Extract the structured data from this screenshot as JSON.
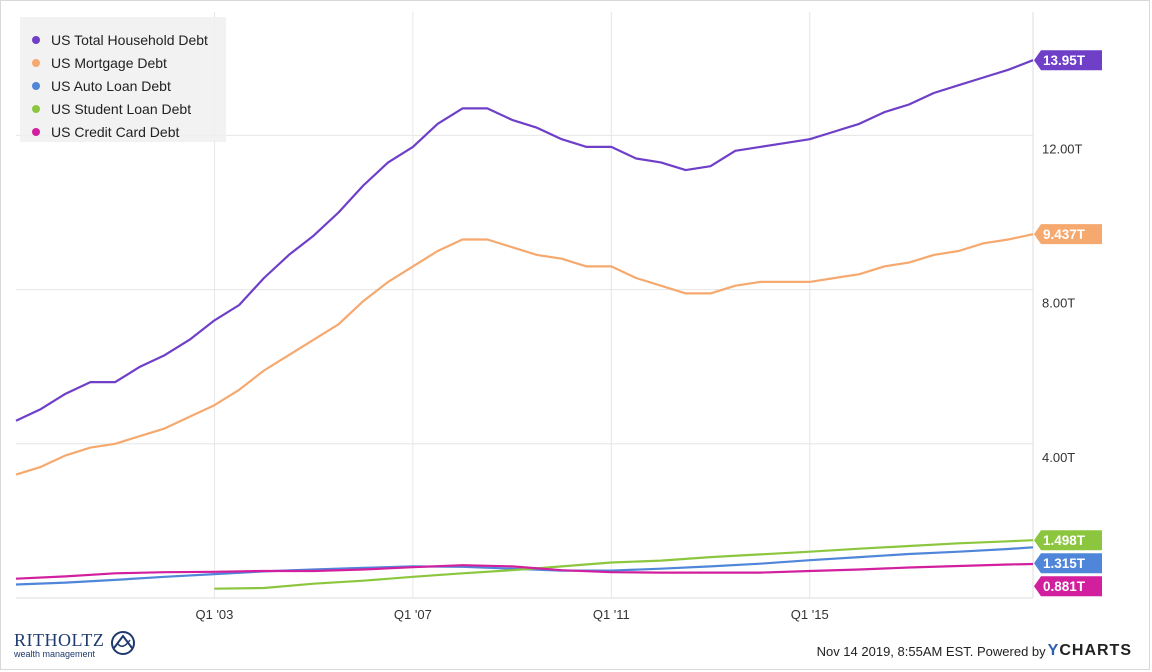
{
  "chart_data": {
    "type": "line",
    "x_ticks": [
      "Q1 '03",
      "Q1 '07",
      "Q1 '11",
      "Q1 '15"
    ],
    "x_tick_years": [
      2003,
      2007,
      2011,
      2015
    ],
    "x_range": [
      1999.0,
      2019.5
    ],
    "ylim": [
      0,
      15.2
    ],
    "y_ticks": [
      "4.00T",
      "8.00T",
      "12.00T"
    ],
    "y_tick_values": [
      4,
      8,
      12
    ],
    "grid": true,
    "legend_position": "top-left",
    "series": [
      {
        "name": "US Total Household Debt",
        "color": "#6f3fc8",
        "last_label": "13.95T",
        "x": [
          1999.0,
          1999.5,
          2000.0,
          2000.5,
          2001.0,
          2001.5,
          2002.0,
          2002.5,
          2003.0,
          2003.5,
          2004.0,
          2004.5,
          2005.0,
          2005.5,
          2006.0,
          2006.5,
          2007.0,
          2007.5,
          2008.0,
          2008.5,
          2009.0,
          2009.5,
          2010.0,
          2010.5,
          2011.0,
          2011.5,
          2012.0,
          2012.5,
          2013.0,
          2013.5,
          2014.0,
          2014.5,
          2015.0,
          2015.5,
          2016.0,
          2016.5,
          2017.0,
          2017.5,
          2018.0,
          2018.5,
          2019.0,
          2019.5
        ],
        "values": [
          4.6,
          4.9,
          5.3,
          5.6,
          5.6,
          6.0,
          6.3,
          6.7,
          7.2,
          7.6,
          8.3,
          8.9,
          9.4,
          10.0,
          10.7,
          11.3,
          11.7,
          12.3,
          12.7,
          12.7,
          12.4,
          12.2,
          11.9,
          11.7,
          11.7,
          11.4,
          11.3,
          11.1,
          11.2,
          11.6,
          11.7,
          11.8,
          11.9,
          12.1,
          12.3,
          12.6,
          12.8,
          13.1,
          13.3,
          13.5,
          13.7,
          13.95
        ]
      },
      {
        "name": "US Mortgage Debt",
        "color": "#f6a96e",
        "last_label": "9.437T",
        "x": [
          1999.0,
          1999.5,
          2000.0,
          2000.5,
          2001.0,
          2001.5,
          2002.0,
          2002.5,
          2003.0,
          2003.5,
          2004.0,
          2004.5,
          2005.0,
          2005.5,
          2006.0,
          2006.5,
          2007.0,
          2007.5,
          2008.0,
          2008.5,
          2009.0,
          2009.5,
          2010.0,
          2010.5,
          2011.0,
          2011.5,
          2012.0,
          2012.5,
          2013.0,
          2013.5,
          2014.0,
          2014.5,
          2015.0,
          2015.5,
          2016.0,
          2016.5,
          2017.0,
          2017.5,
          2018.0,
          2018.5,
          2019.0,
          2019.5
        ],
        "values": [
          3.2,
          3.4,
          3.7,
          3.9,
          4.0,
          4.2,
          4.4,
          4.7,
          5.0,
          5.4,
          5.9,
          6.3,
          6.7,
          7.1,
          7.7,
          8.2,
          8.6,
          9.0,
          9.3,
          9.3,
          9.1,
          8.9,
          8.8,
          8.6,
          8.6,
          8.3,
          8.1,
          7.9,
          7.9,
          8.1,
          8.2,
          8.2,
          8.2,
          8.3,
          8.4,
          8.6,
          8.7,
          8.9,
          9.0,
          9.2,
          9.3,
          9.437
        ]
      },
      {
        "name": "US Auto Loan Debt",
        "color": "#4f86d9",
        "last_label": "1.315T",
        "x": [
          1999.0,
          2000.0,
          2001.0,
          2002.0,
          2003.0,
          2004.0,
          2005.0,
          2006.0,
          2007.0,
          2008.0,
          2009.0,
          2010.0,
          2011.0,
          2012.0,
          2013.0,
          2014.0,
          2015.0,
          2016.0,
          2017.0,
          2018.0,
          2019.0,
          2019.5
        ],
        "values": [
          0.35,
          0.4,
          0.47,
          0.55,
          0.62,
          0.69,
          0.74,
          0.78,
          0.82,
          0.81,
          0.76,
          0.71,
          0.71,
          0.76,
          0.82,
          0.89,
          0.98,
          1.06,
          1.14,
          1.2,
          1.27,
          1.315
        ]
      },
      {
        "name": "US Student Loan Debt",
        "color": "#8cc63f",
        "last_label": "1.498T",
        "x": [
          2003.0,
          2004.0,
          2005.0,
          2006.0,
          2007.0,
          2008.0,
          2009.0,
          2010.0,
          2011.0,
          2012.0,
          2013.0,
          2014.0,
          2015.0,
          2016.0,
          2017.0,
          2018.0,
          2019.0,
          2019.5
        ],
        "values": [
          0.24,
          0.26,
          0.37,
          0.45,
          0.55,
          0.64,
          0.72,
          0.82,
          0.92,
          0.97,
          1.06,
          1.13,
          1.2,
          1.28,
          1.35,
          1.42,
          1.47,
          1.498
        ]
      },
      {
        "name": "US Credit Card Debt",
        "color": "#d21f9e",
        "last_label": "0.881T",
        "x": [
          1999.0,
          2000.0,
          2001.0,
          2002.0,
          2003.0,
          2004.0,
          2005.0,
          2006.0,
          2007.0,
          2008.0,
          2009.0,
          2010.0,
          2011.0,
          2012.0,
          2013.0,
          2014.0,
          2015.0,
          2016.0,
          2017.0,
          2018.0,
          2019.0,
          2019.5
        ],
        "values": [
          0.5,
          0.56,
          0.64,
          0.67,
          0.68,
          0.7,
          0.7,
          0.74,
          0.8,
          0.85,
          0.82,
          0.72,
          0.67,
          0.66,
          0.66,
          0.66,
          0.7,
          0.74,
          0.79,
          0.83,
          0.87,
          0.881
        ]
      }
    ]
  },
  "legend": {
    "items": [
      {
        "label": "US Total Household Debt",
        "color": "#6f3fc8"
      },
      {
        "label": "US Mortgage Debt",
        "color": "#f6a96e"
      },
      {
        "label": "US Auto Loan Debt",
        "color": "#4f86d9"
      },
      {
        "label": "US Student Loan Debt",
        "color": "#8cc63f"
      },
      {
        "label": "US Credit Card Debt",
        "color": "#d21f9e"
      }
    ]
  },
  "footer": {
    "brand_name": "RITHOLTZ",
    "brand_sub": "wealth management",
    "credit": "Nov 14 2019, 8:55AM EST. Powered by",
    "ycharts_y": "Y",
    "ycharts_rest": "CHARTS"
  }
}
